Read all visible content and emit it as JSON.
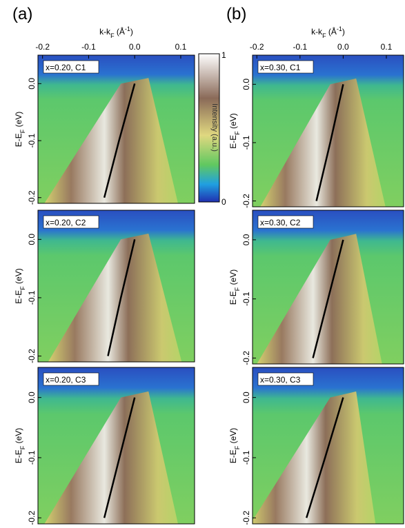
{
  "panel_labels": [
    "(a)",
    "(b)"
  ],
  "colorbar": {
    "label": "Intensity (a.u.)",
    "ticks": [
      0,
      1
    ]
  },
  "chart_data": [
    {
      "type": "image",
      "label": "x=0.20, C1",
      "x_label": [
        "k-k",
        "F",
        " (Å",
        "-1",
        ")"
      ],
      "y_label": [
        "E-E",
        "F",
        " (eV)"
      ],
      "xlim": [
        -0.21,
        0.13
      ],
      "ylim": [
        -0.21,
        0.05
      ],
      "xticks": [
        -0.2,
        -0.1,
        {
          "value": 0,
          "label": "0.0"
        },
        0.1
      ],
      "yticks": [
        {
          "value": 0,
          "label": "0.0"
        },
        -0.1,
        -0.2
      ],
      "dispersion": {
        "E": [
          -0.2,
          -0.1,
          0
        ],
        "k": [
          -0.066,
          -0.034,
          0
        ]
      }
    },
    {
      "type": "image",
      "label": "x=0.20, C2",
      "y_label": [
        "E-E",
        "F",
        " (eV)"
      ],
      "xlim": [
        -0.21,
        0.13
      ],
      "ylim": [
        -0.21,
        0.05
      ],
      "yticks": [
        {
          "value": 0,
          "label": "0.0"
        },
        -0.1,
        -0.2
      ],
      "dispersion": {
        "E": [
          -0.2,
          -0.1,
          0
        ],
        "k": [
          -0.058,
          -0.03,
          0
        ]
      }
    },
    {
      "type": "image",
      "label": "x=0.20, C3",
      "y_label": [
        "E-E",
        "F",
        " (eV)"
      ],
      "xlim": [
        -0.21,
        0.13
      ],
      "ylim": [
        -0.21,
        0.05
      ],
      "yticks": [
        {
          "value": 0,
          "label": "0.0"
        },
        -0.1,
        -0.2
      ],
      "dispersion": {
        "E": [
          -0.2,
          -0.1,
          0
        ],
        "k": [
          -0.066,
          -0.033,
          0
        ]
      }
    },
    {
      "type": "image",
      "label": "x=0.30, C1",
      "x_label": [
        "k-k",
        "F",
        " (Å",
        "-1",
        ")"
      ],
      "y_label": [
        "E-E",
        "F",
        " (eV)"
      ],
      "xlim": [
        -0.21,
        0.14
      ],
      "ylim": [
        -0.21,
        0.05
      ],
      "xticks": [
        -0.2,
        -0.1,
        {
          "value": 0,
          "label": "0.0"
        },
        0.1
      ],
      "yticks": [
        {
          "value": 0,
          "label": "0.0"
        },
        -0.1,
        -0.2
      ],
      "dispersion": {
        "E": [
          -0.2,
          -0.1,
          0
        ],
        "k": [
          -0.062,
          -0.03,
          0
        ]
      }
    },
    {
      "type": "image",
      "label": "x=0.30, C2",
      "y_label": [
        "E-E",
        "F",
        " (eV)"
      ],
      "xlim": [
        -0.21,
        0.14
      ],
      "ylim": [
        -0.21,
        0.05
      ],
      "yticks": [
        {
          "value": 0,
          "label": "0.0"
        },
        -0.1,
        -0.2
      ],
      "dispersion": {
        "E": [
          -0.2,
          -0.1,
          0
        ],
        "k": [
          -0.07,
          -0.035,
          0
        ]
      }
    },
    {
      "type": "image",
      "label": "x=0.30, C3",
      "y_label": [
        "E-E",
        "F",
        " (eV)"
      ],
      "xlim": [
        -0.21,
        0.14
      ],
      "ylim": [
        -0.21,
        0.05
      ],
      "yticks": [
        {
          "value": 0,
          "label": "0.0"
        },
        -0.1,
        -0.2
      ],
      "dispersion": {
        "E": [
          -0.2,
          -0.1,
          0
        ],
        "k": [
          -0.085,
          -0.042,
          0
        ]
      }
    }
  ]
}
